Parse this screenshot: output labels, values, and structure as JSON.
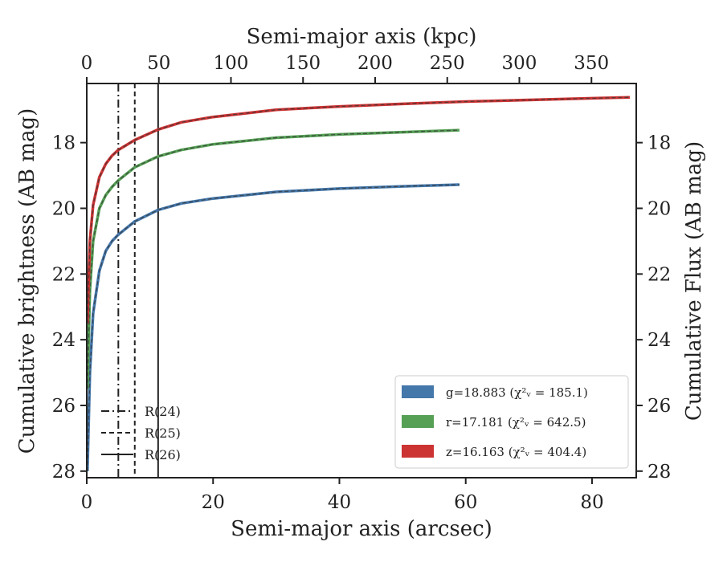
{
  "chart_data": {
    "type": "line",
    "xlabel_bottom": "Semi-major axis (arcsec)",
    "xlabel_top": "Semi-major axis (kpc)",
    "ylabel_left": "Cumulative brightness (AB mag)",
    "ylabel_right": "Cumulative Flux (AB mag)",
    "xlim": [
      0,
      87
    ],
    "ylim_inverted": [
      28.2,
      16.2
    ],
    "xticks_bottom": [
      "0",
      "20",
      "40",
      "60",
      "80"
    ],
    "xticks_bottom_values": [
      0,
      20,
      40,
      60,
      80
    ],
    "xticks_top": [
      "0",
      "50",
      "100",
      "150",
      "200",
      "250",
      "300",
      "350"
    ],
    "xticks_top_kpc": [
      0,
      50,
      100,
      150,
      200,
      250,
      300,
      350
    ],
    "kpc_per_arcsec": 4.38,
    "yticks": [
      "18",
      "20",
      "22",
      "24",
      "26",
      "28"
    ],
    "ytick_values": [
      18,
      20,
      22,
      24,
      26,
      28
    ],
    "vlines": [
      {
        "label": "R(24)",
        "x": 5.0,
        "style": "dashdot"
      },
      {
        "label": "R(25)",
        "x": 7.6,
        "style": "dashed"
      },
      {
        "label": "R(26)",
        "x": 11.3,
        "style": "solid"
      }
    ],
    "series": [
      {
        "name": "g=18.883 (χ²ᵥ = 185.1)",
        "color": "#4477aa",
        "x": [
          0.1,
          0.5,
          1,
          2,
          3,
          4,
          5,
          7.6,
          11.3,
          15,
          20,
          30,
          40,
          50,
          59
        ],
        "y": [
          28.0,
          25.0,
          23.2,
          21.9,
          21.3,
          21.0,
          20.8,
          20.4,
          20.05,
          19.85,
          19.7,
          19.5,
          19.4,
          19.33,
          19.28
        ]
      },
      {
        "name": "r=17.181 (χ²ᵥ = 642.5)",
        "color": "#55a055",
        "x": [
          0.1,
          0.5,
          1,
          2,
          3,
          4,
          5,
          7.6,
          11.3,
          15,
          20,
          30,
          40,
          50,
          59
        ],
        "y": [
          25.5,
          22.5,
          21.0,
          20.0,
          19.6,
          19.35,
          19.15,
          18.75,
          18.42,
          18.22,
          18.05,
          17.85,
          17.75,
          17.68,
          17.62
        ]
      },
      {
        "name": "z=16.163 (χ²ᵥ = 404.4)",
        "color": "#cc3333",
        "x": [
          0.1,
          0.5,
          1,
          2,
          3,
          4,
          5,
          7.6,
          11.3,
          15,
          20,
          30,
          40,
          50,
          60,
          70,
          80,
          86
        ],
        "y": [
          23.5,
          21.0,
          19.9,
          19.05,
          18.65,
          18.4,
          18.22,
          17.92,
          17.6,
          17.38,
          17.22,
          17.0,
          16.9,
          16.82,
          16.75,
          16.7,
          16.65,
          16.62
        ]
      }
    ],
    "legend_position": "lower-right",
    "vline_legend_position": "lower-left",
    "grid": false
  }
}
